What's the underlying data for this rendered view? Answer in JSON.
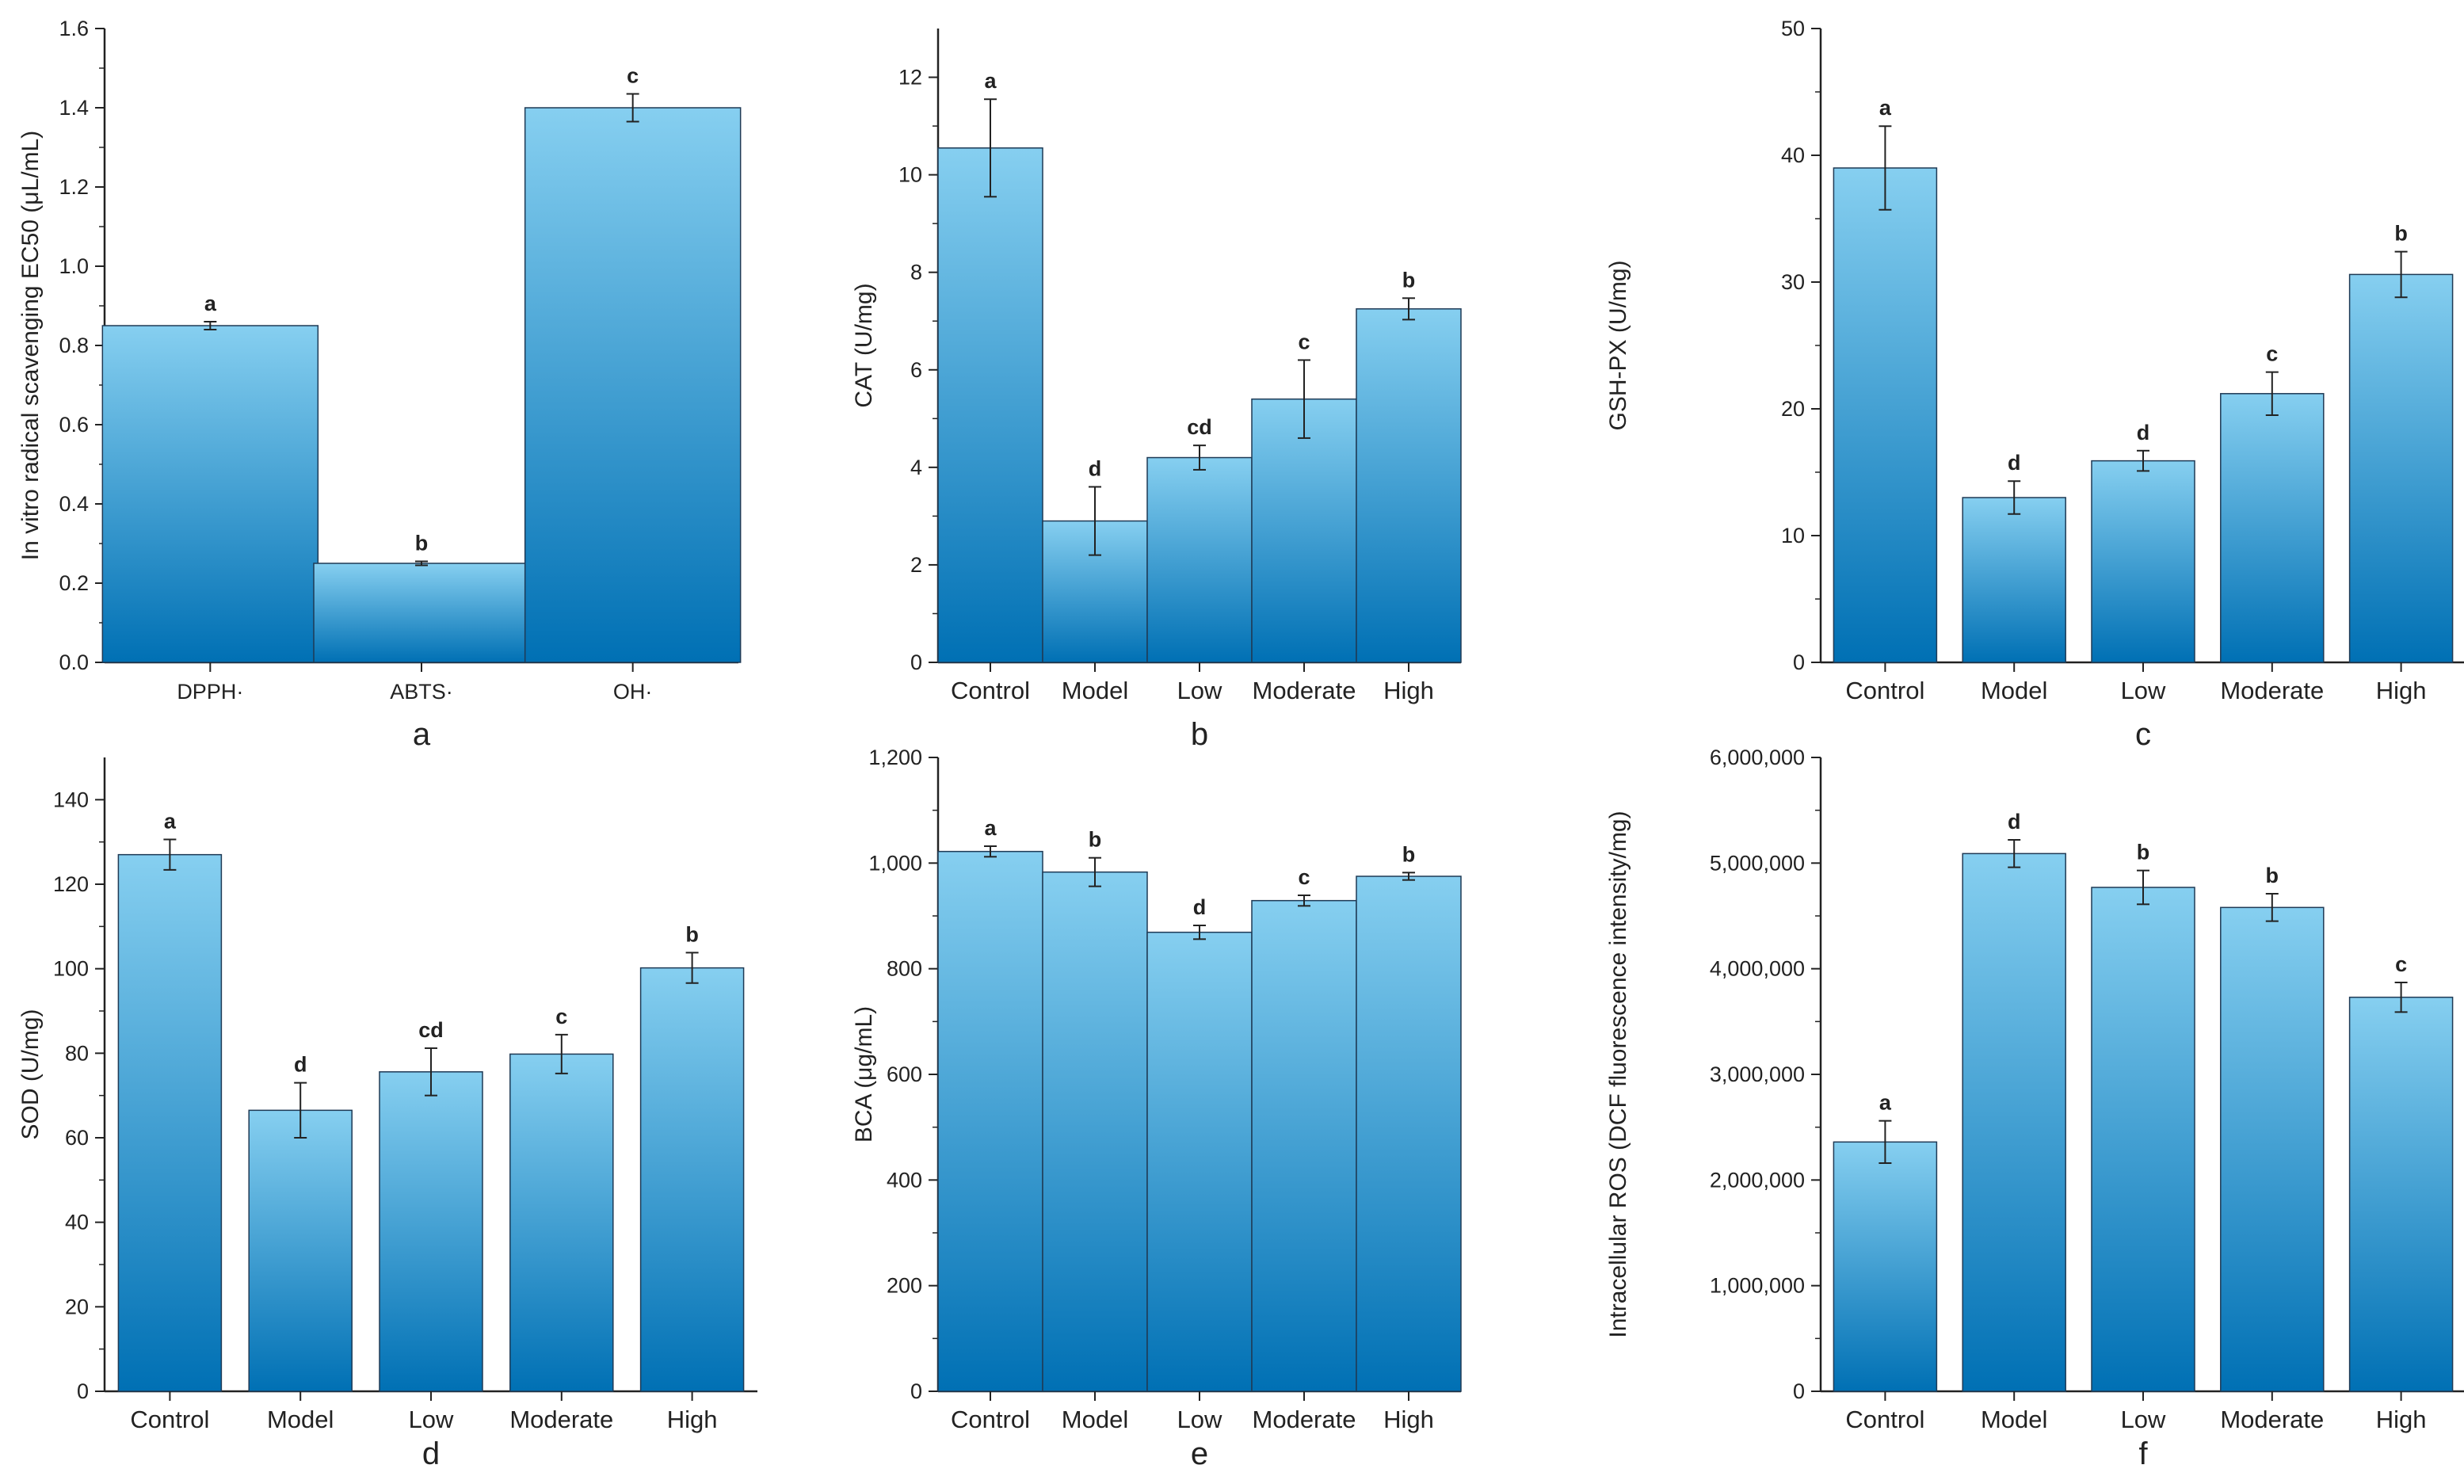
{
  "colors": {
    "bar_top": "#86cff0",
    "bar_bottom": "#0070b4",
    "axis": "#222222",
    "bar_stroke": "#1f3a55"
  },
  "chart_data": [
    {
      "type": "bar",
      "panel": "a",
      "ylabel": "In vitro radical scavenging EC50 (μL/mL)",
      "ylim": [
        0,
        1.6
      ],
      "yticks": [
        "0.0",
        "0.2",
        "0.4",
        "0.6",
        "0.8",
        "1.0",
        "1.2",
        "1.4",
        "1.6"
      ],
      "categories": [
        "DPPH·",
        "ABTS·",
        "OH·"
      ],
      "values": [
        0.85,
        0.25,
        1.4
      ],
      "errors": [
        0.01,
        0.005,
        0.035
      ],
      "labels": [
        "a",
        "b",
        "c"
      ]
    },
    {
      "type": "bar",
      "panel": "b",
      "ylabel": "CAT (U/mg)",
      "ylim": [
        0,
        13
      ],
      "yticks": [
        "0",
        "2",
        "4",
        "6",
        "8",
        "10",
        "12"
      ],
      "categories": [
        "Control",
        "Model",
        "Low",
        "Moderate",
        "High"
      ],
      "values": [
        10.55,
        2.9,
        4.2,
        5.4,
        7.25
      ],
      "errors": [
        1.0,
        0.7,
        0.25,
        0.8,
        0.22
      ],
      "labels": [
        "a",
        "d",
        "cd",
        "c",
        "b"
      ]
    },
    {
      "type": "bar",
      "panel": "c",
      "ylabel": "GSH-PX (U/mg)",
      "ylim": [
        0,
        50
      ],
      "yticks": [
        "0",
        "10",
        "20",
        "30",
        "40",
        "50"
      ],
      "categories": [
        "Control",
        "Model",
        "Low",
        "Moderate",
        "High"
      ],
      "values": [
        39.0,
        13.0,
        15.9,
        21.2,
        30.6
      ],
      "errors": [
        3.3,
        1.3,
        0.8,
        1.7,
        1.8
      ],
      "labels": [
        "a",
        "d",
        "d",
        "c",
        "b"
      ]
    },
    {
      "type": "bar",
      "panel": "d",
      "ylabel": "SOD (U/mg)",
      "ylim": [
        0,
        150
      ],
      "yticks": [
        "0",
        "20",
        "40",
        "60",
        "80",
        "100",
        "120",
        "140"
      ],
      "categories": [
        "Control",
        "Model",
        "Low",
        "Moderate",
        "High"
      ],
      "values": [
        127,
        66.5,
        75.6,
        79.8,
        100.2
      ],
      "errors": [
        3.6,
        6.5,
        5.6,
        4.6,
        3.6
      ],
      "labels": [
        "a",
        "d",
        "cd",
        "c",
        "b"
      ]
    },
    {
      "type": "bar",
      "panel": "e",
      "ylabel": "BCA (μg/mL)",
      "ylim": [
        0,
        1200
      ],
      "yticks": [
        "0",
        "200",
        "400",
        "600",
        "800",
        "1,000",
        "1,200"
      ],
      "categories": [
        "Control",
        "Model",
        "Low",
        "Moderate",
        "High"
      ],
      "values": [
        1022,
        983,
        869,
        929,
        975
      ],
      "errors": [
        10,
        27,
        13,
        10,
        7
      ],
      "labels": [
        "a",
        "b",
        "d",
        "c",
        "b"
      ]
    },
    {
      "type": "bar",
      "panel": "f",
      "ylabel": "Intracellular ROS (DCF fluorescence intensity/mg)",
      "ylim": [
        0,
        6000000
      ],
      "yticks": [
        "0",
        "1,000,000",
        "2,000,000",
        "3,000,000",
        "4,000,000",
        "5,000,000",
        "6,000,000"
      ],
      "categories": [
        "Control",
        "Model",
        "Low",
        "Moderate",
        "High"
      ],
      "values": [
        2360000,
        5090000,
        4770000,
        4580000,
        3730000
      ],
      "errors": [
        200000,
        130000,
        160000,
        130000,
        140000
      ],
      "labels": [
        "a",
        "d",
        "b",
        "b",
        "c"
      ]
    }
  ]
}
